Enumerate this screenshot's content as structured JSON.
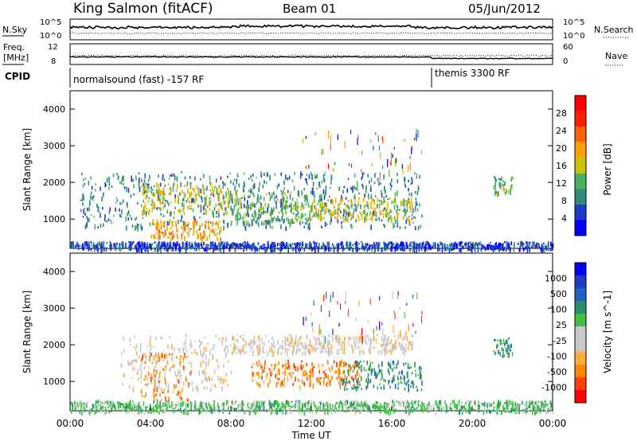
{
  "header": {
    "station": "King Salmon (fitACF)",
    "beam": "Beam 01",
    "date": "05/Jun/2012"
  },
  "strip_sky": {
    "left_label": "N.Sky",
    "right_label": "N.Search",
    "left_ticks": [
      "10^5",
      "10^0"
    ],
    "right_ticks": [
      "10^5",
      "10^0"
    ]
  },
  "strip_freq": {
    "left_label_1": "Freq.",
    "left_label_2": "[MHz]",
    "right_label": "Nave",
    "left_ticks": [
      "12",
      "8"
    ],
    "right_ticks": [
      "60",
      "0"
    ]
  },
  "cpid": {
    "label": "CPID",
    "segments": [
      {
        "text": "normalsound (fast) -157 RF",
        "start_hour": 0
      },
      {
        "text": "themis 3300 RF",
        "start_hour": 18
      }
    ]
  },
  "colors": {
    "power_scale": [
      "#0000ff",
      "#1e3cc8",
      "#2f8c7a",
      "#4ab060",
      "#c8c000",
      "#ffa000",
      "#ff6000",
      "#ff2000",
      "#ff0000"
    ],
    "velocity_scale": [
      "#ff0000",
      "#ff4000",
      "#ff8800",
      "#ffb040",
      "#c8c8c8",
      "#c8c8c8",
      "#40c040",
      "#2a8c70",
      "#2060c0",
      "#1e3cc8",
      "#0000ff"
    ]
  },
  "chart_data": [
    {
      "type": "heatmap",
      "panel": "power",
      "ylabel": "Slant Range [km]",
      "yticks": [
        "1000",
        "2000",
        "3000",
        "4000"
      ],
      "ylim": [
        200,
        4500
      ],
      "xlim_hours": [
        0,
        24
      ],
      "colorbar_label": "Power [dB]",
      "colorbar_ticks": [
        "4",
        "8",
        "12",
        "16",
        "20",
        "24",
        "28"
      ],
      "bands": [
        {
          "t0": 0.5,
          "t1": 17.5,
          "r0": 800,
          "r1": 2300,
          "level": 2
        },
        {
          "t0": 3.5,
          "t1": 8.0,
          "r0": 1200,
          "r1": 2000,
          "level": 4
        },
        {
          "t0": 8.0,
          "t1": 12.5,
          "r0": 900,
          "r1": 1800,
          "level": 3
        },
        {
          "t0": 12.0,
          "t1": 17.0,
          "r0": 1000,
          "r1": 1600,
          "level": 4
        },
        {
          "t0": 4.0,
          "t1": 7.5,
          "r0": 500,
          "r1": 1000,
          "level": 5
        },
        {
          "t0": 21.0,
          "t1": 22.0,
          "r0": 1700,
          "r1": 2200,
          "level": 3
        },
        {
          "t0": 0,
          "t1": 24,
          "r0": 200,
          "r1": 400,
          "level": 1
        }
      ]
    },
    {
      "type": "heatmap",
      "panel": "velocity",
      "ylabel": "Slant Range [km]",
      "yticks": [
        "1000",
        "2000",
        "3000",
        "4000"
      ],
      "ylim": [
        200,
        4500
      ],
      "xlim_hours": [
        0,
        24
      ],
      "xlabel": "Time UT",
      "xticks": [
        "00:00",
        "04:00",
        "08:00",
        "12:00",
        "16:00",
        "20:00",
        "00:00"
      ],
      "colorbar_label": "Velocity [m s^-1]",
      "colorbar_ticks": [
        "1000",
        "500",
        "100",
        "25",
        "-25",
        "-100",
        "-500",
        "-1000"
      ],
      "bands": [
        {
          "t0": 2.5,
          "t1": 8.0,
          "r0": 800,
          "r1": 2300,
          "level": 4
        },
        {
          "t0": 3.5,
          "t1": 6.0,
          "r0": 500,
          "r1": 1800,
          "level": 2
        },
        {
          "t0": 9.0,
          "t1": 14.5,
          "r0": 900,
          "r1": 1600,
          "level": 2
        },
        {
          "t0": 13.5,
          "t1": 17.5,
          "r0": 800,
          "r1": 1600,
          "level": 7
        },
        {
          "t0": 8.0,
          "t1": 17.0,
          "r0": 1800,
          "r1": 2300,
          "level": 4
        },
        {
          "t0": 21.0,
          "t1": 22.0,
          "r0": 1700,
          "r1": 2200,
          "level": 7
        },
        {
          "t0": 0,
          "t1": 24,
          "r0": 200,
          "r1": 500,
          "level": 6
        }
      ]
    }
  ]
}
